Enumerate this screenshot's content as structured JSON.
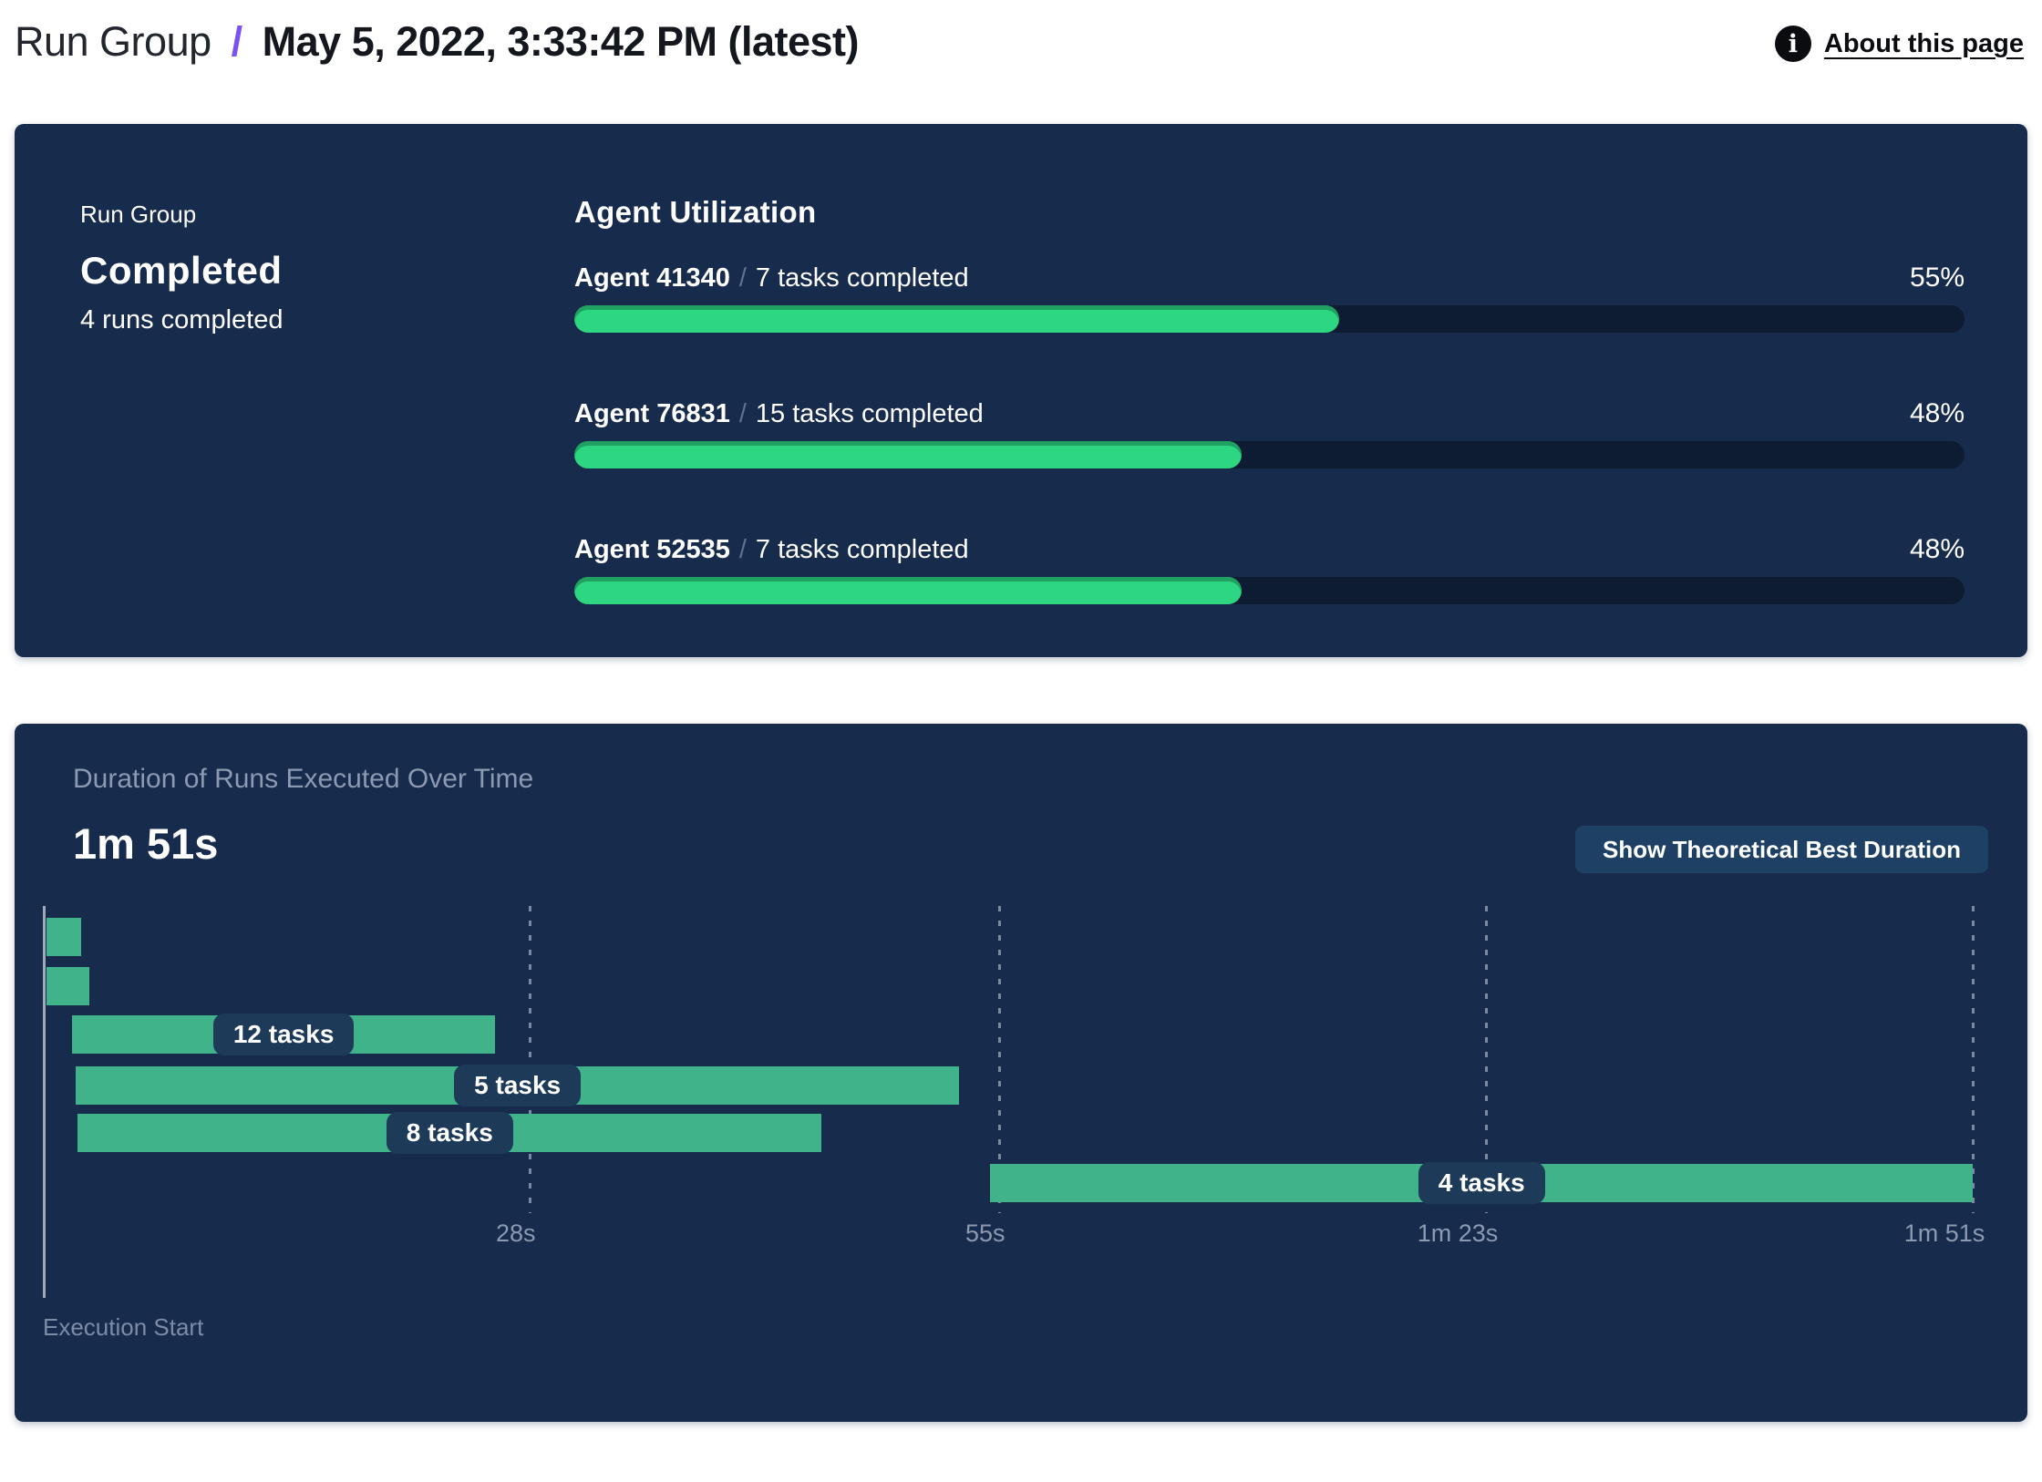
{
  "header": {
    "breadcrumb_root": "Run Group",
    "breadcrumb_separator": "/",
    "breadcrumb_current": "May 5, 2022, 3:33:42 PM (latest)",
    "about_link": "About this page",
    "info_icon_glyph": "i",
    "accent_color": "#7a52f4"
  },
  "status_panel": {
    "label": "Run Group",
    "status": "Completed",
    "sub": "4 runs completed",
    "utilization": {
      "title": "Agent Utilization",
      "separator": "/",
      "bar_fill_color": "#2dd781",
      "bar_track_color": "#0e1c33",
      "agents": [
        {
          "name": "Agent 41340",
          "tasks": "7 tasks completed",
          "percent": 55,
          "percent_label": "55%"
        },
        {
          "name": "Agent 76831",
          "tasks": "15 tasks completed",
          "percent": 48,
          "percent_label": "48%"
        },
        {
          "name": "Agent 52535",
          "tasks": "7 tasks completed",
          "percent": 48,
          "percent_label": "48%"
        }
      ]
    }
  },
  "duration_panel": {
    "title": "Duration of Runs Executed Over Time",
    "total_duration": "1m 51s",
    "button_label": "Show Theoretical Best Duration",
    "execution_start_label": "Execution Start"
  },
  "chart_data": [
    {
      "type": "bar",
      "title": "Agent Utilization",
      "categories": [
        "Agent 41340",
        "Agent 76831",
        "Agent 52535"
      ],
      "values": [
        55,
        48,
        48
      ],
      "value_unit": "%",
      "annotations": [
        "7 tasks completed",
        "15 tasks completed",
        "7 tasks completed"
      ],
      "xlim": [
        0,
        100
      ],
      "bar_color": "#2dd781",
      "track_color": "#0e1c33"
    },
    {
      "type": "gantt",
      "title": "Duration of Runs Executed Over Time",
      "total_duration_label": "1m 51s",
      "xlabel": "Execution Start",
      "time_axis_max_seconds": 111,
      "ticks": [
        {
          "label": "28s",
          "seconds": 28
        },
        {
          "label": "55s",
          "seconds": 55
        },
        {
          "label": "1m 23s",
          "seconds": 83
        },
        {
          "label": "1m 51s",
          "seconds": 111
        }
      ],
      "runs": [
        {
          "label": "",
          "start_seconds": 0.2,
          "end_seconds": 2.2
        },
        {
          "label": "",
          "start_seconds": 0.2,
          "end_seconds": 2.7
        },
        {
          "label": "12 tasks",
          "start_seconds": 1.7,
          "end_seconds": 26.0
        },
        {
          "label": "5 tasks",
          "start_seconds": 1.9,
          "end_seconds": 52.7
        },
        {
          "label": "8 tasks",
          "start_seconds": 2.0,
          "end_seconds": 44.8
        },
        {
          "label": "4 tasks",
          "start_seconds": 54.5,
          "end_seconds": 111.0
        }
      ],
      "bar_color": "#41b38a",
      "label_pill_color": "#1d3b58",
      "grid": "dashed-vertical",
      "legend": "none"
    }
  ]
}
